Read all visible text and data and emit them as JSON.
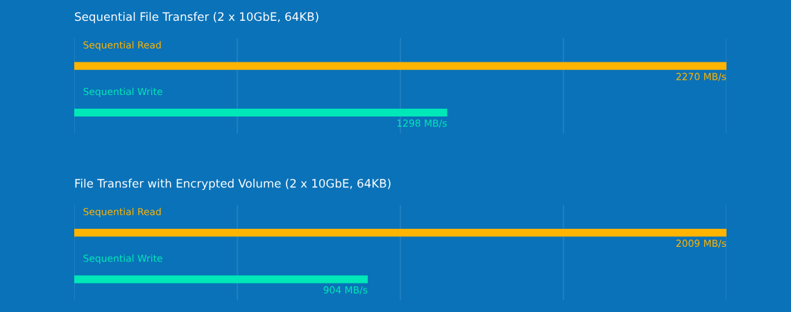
{
  "chart_data": [
    {
      "type": "bar",
      "orientation": "horizontal",
      "title": "Sequential File Transfer (2 x 10GbE, 64KB)",
      "categories": [
        "Sequential Read",
        "Sequential Write"
      ],
      "values": [
        2270,
        1298
      ],
      "colors": [
        "#ffb400",
        "#00e8b8"
      ],
      "value_labels": [
        "2270 MB/s",
        "1298 MB/s"
      ],
      "xlim": [
        0,
        2270
      ],
      "xticks": [
        {
          "value": 0,
          "label": null
        },
        {
          "value": 567.5,
          "label": null
        },
        {
          "value": 1135,
          "label": null
        },
        {
          "value": 1702.5,
          "label": null
        },
        {
          "value": 2270,
          "label": null
        }
      ],
      "grid": "x",
      "tick_labels": "y"
    },
    {
      "type": "bar",
      "orientation": "horizontal",
      "title": "File Transfer with Encrypted Volume (2 x 10GbE, 64KB)",
      "categories": [
        "Sequential Read",
        "Sequential Write"
      ],
      "values": [
        2009,
        904
      ],
      "colors": [
        "#ffb400",
        "#00e8b8"
      ],
      "value_labels": [
        "2009 MB/s",
        "904 MB/s"
      ],
      "xlim": [
        0,
        2009
      ],
      "xticks": [
        {
          "value": 0,
          "label": null
        },
        {
          "value": 502.25,
          "label": null
        },
        {
          "value": 1004.5,
          "label": null
        },
        {
          "value": 1506.75,
          "label": null
        },
        {
          "value": 2009,
          "label": null
        }
      ],
      "grid": "x",
      "tick_labels": "y"
    }
  ]
}
